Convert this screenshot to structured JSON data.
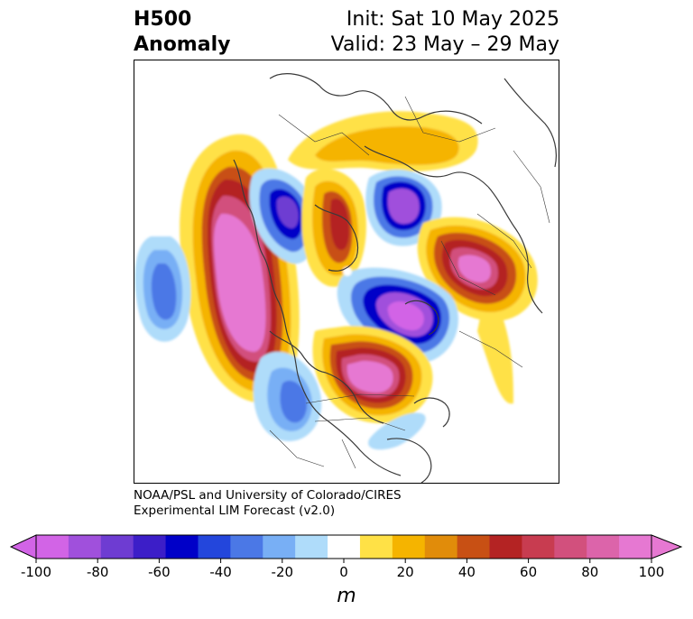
{
  "header": {
    "title_line1": "H500",
    "title_line2": "Anomaly",
    "init_text": "Init: Sat 10 May 2025",
    "valid_text": "Valid: 23 May – 29 May"
  },
  "credit": {
    "line1": "NOAA/PSL and University of Colorado/CIRES",
    "line2": "Experimental LIM Forecast (v2.0)"
  },
  "colorbar": {
    "unit": "m",
    "ticks": [
      "-100",
      "-80",
      "-60",
      "-40",
      "-20",
      "0",
      "20",
      "40",
      "60",
      "80",
      "100"
    ],
    "levels": [
      -100,
      -90,
      -80,
      -70,
      -60,
      -50,
      -40,
      -30,
      -20,
      -10,
      10,
      20,
      30,
      40,
      50,
      60,
      70,
      80,
      90,
      100
    ],
    "colors": [
      "#d264e6",
      "#a050dc",
      "#6e3cd2",
      "#3c1ec8",
      "#0000c8",
      "#2346dc",
      "#4b78e6",
      "#78aff5",
      "#afdcfa",
      "#ffffff",
      "#ffe146",
      "#f5b400",
      "#e18c0a",
      "#c85014",
      "#b42323",
      "#c83c50",
      "#d2507d",
      "#dc64aa",
      "#e678d2"
    ],
    "under_color": "#d264e6",
    "over_color": "#e678d2"
  },
  "map": {
    "projection": "polar-stereographic",
    "region": "Northern Hemisphere (Pacific–North America–Arctic)"
  }
}
